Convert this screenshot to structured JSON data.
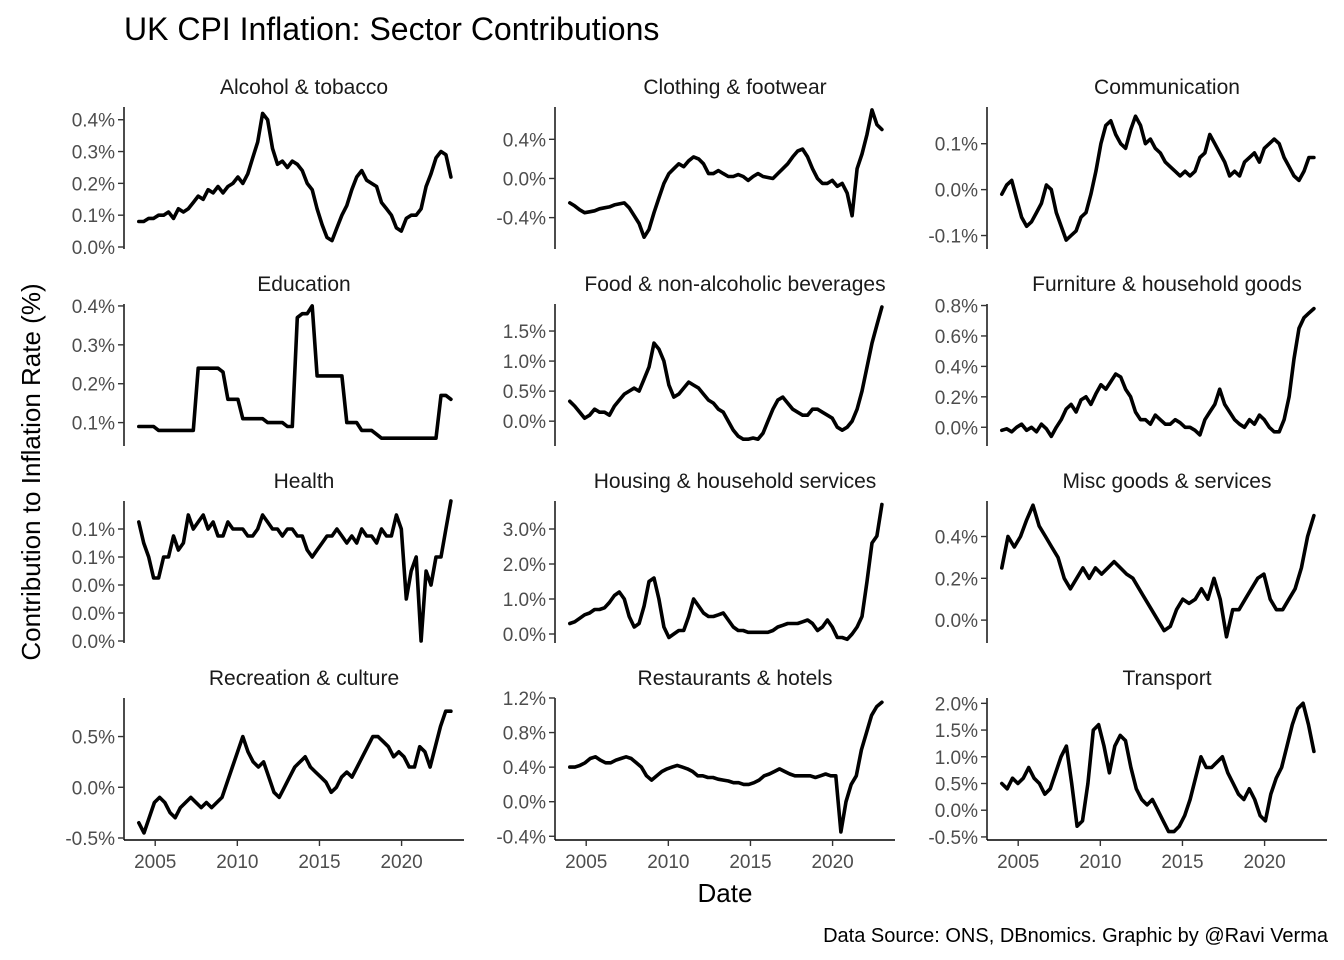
{
  "chart_data": {
    "type": "line",
    "title": "UK CPI Inflation: Sector Contributions",
    "xlabel": "Date",
    "ylabel": "Contribution to Inflation Rate (%)",
    "caption": "Data Source: ONS, DBnomics. Graphic by @Ravi Verma",
    "xlim": [
      2003.1,
      2023.8
    ],
    "x_ticks": [
      2005,
      2010,
      2015,
      2020
    ],
    "x_tick_labels": [
      "2005",
      "2010",
      "2015",
      "2020"
    ],
    "x_start": 2004.0,
    "x_step": 0.25,
    "grid": false,
    "panels": [
      {
        "name": "Alcohol & tobacco",
        "ylim": [
          0.0,
          0.44
        ],
        "y_ticks": [
          0.0,
          0.1,
          0.2,
          0.3,
          0.4
        ],
        "y_tick_labels": [
          "0.0%",
          "0.1%",
          "0.2%",
          "0.3%",
          "0.4%"
        ],
        "values": [
          0.08,
          0.08,
          0.09,
          0.09,
          0.1,
          0.1,
          0.11,
          0.09,
          0.12,
          0.11,
          0.12,
          0.14,
          0.16,
          0.15,
          0.18,
          0.17,
          0.19,
          0.17,
          0.19,
          0.2,
          0.22,
          0.2,
          0.23,
          0.28,
          0.33,
          0.42,
          0.4,
          0.31,
          0.26,
          0.27,
          0.25,
          0.27,
          0.26,
          0.24,
          0.2,
          0.18,
          0.12,
          0.07,
          0.03,
          0.02,
          0.06,
          0.1,
          0.13,
          0.18,
          0.22,
          0.24,
          0.21,
          0.2,
          0.19,
          0.14,
          0.12,
          0.1,
          0.06,
          0.05,
          0.09,
          0.1,
          0.1,
          0.12,
          0.19,
          0.23,
          0.28,
          0.3,
          0.29,
          0.22
        ]
      },
      {
        "name": "Clothing & footwear",
        "ylim": [
          -0.7,
          0.73
        ],
        "y_ticks": [
          -0.4,
          0.0,
          0.4
        ],
        "y_tick_labels": [
          "-0.4%",
          "0.0%",
          "0.4%"
        ],
        "values": [
          -0.25,
          -0.28,
          -0.32,
          -0.35,
          -0.34,
          -0.33,
          -0.31,
          -0.3,
          -0.29,
          -0.27,
          -0.26,
          -0.25,
          -0.3,
          -0.38,
          -0.46,
          -0.6,
          -0.52,
          -0.35,
          -0.2,
          -0.05,
          0.05,
          0.1,
          0.15,
          0.12,
          0.18,
          0.22,
          0.2,
          0.15,
          0.05,
          0.05,
          0.08,
          0.05,
          0.02,
          0.02,
          0.04,
          0.02,
          -0.02,
          0.02,
          0.05,
          0.02,
          0.01,
          0.0,
          0.05,
          0.1,
          0.15,
          0.22,
          0.28,
          0.3,
          0.22,
          0.1,
          0.0,
          -0.05,
          -0.05,
          -0.02,
          -0.08,
          -0.05,
          -0.15,
          -0.38,
          0.1,
          0.25,
          0.45,
          0.7,
          0.55,
          0.5
        ]
      },
      {
        "name": "Communication",
        "ylim": [
          -0.125,
          0.18
        ],
        "y_ticks": [
          -0.1,
          0.0,
          0.1
        ],
        "y_tick_labels": [
          "-0.1%",
          "0.0%",
          "0.1%"
        ],
        "values": [
          -0.01,
          0.01,
          0.02,
          -0.02,
          -0.06,
          -0.08,
          -0.07,
          -0.05,
          -0.03,
          0.01,
          0.0,
          -0.05,
          -0.08,
          -0.11,
          -0.1,
          -0.09,
          -0.06,
          -0.05,
          -0.01,
          0.04,
          0.1,
          0.14,
          0.15,
          0.12,
          0.1,
          0.09,
          0.13,
          0.16,
          0.14,
          0.1,
          0.11,
          0.09,
          0.08,
          0.06,
          0.05,
          0.04,
          0.03,
          0.04,
          0.03,
          0.04,
          0.07,
          0.08,
          0.12,
          0.1,
          0.08,
          0.06,
          0.03,
          0.04,
          0.03,
          0.06,
          0.07,
          0.08,
          0.06,
          0.09,
          0.1,
          0.11,
          0.1,
          0.07,
          0.05,
          0.03,
          0.02,
          0.04,
          0.07,
          0.07
        ]
      },
      {
        "name": "Education",
        "ylim": [
          0.045,
          0.405
        ],
        "y_ticks": [
          0.1,
          0.2,
          0.3,
          0.4
        ],
        "y_tick_labels": [
          "0.1%",
          "0.2%",
          "0.3%",
          "0.4%"
        ],
        "values": [
          0.09,
          0.09,
          0.09,
          0.09,
          0.08,
          0.08,
          0.08,
          0.08,
          0.08,
          0.08,
          0.08,
          0.08,
          0.24,
          0.24,
          0.24,
          0.24,
          0.24,
          0.23,
          0.16,
          0.16,
          0.16,
          0.11,
          0.11,
          0.11,
          0.11,
          0.11,
          0.1,
          0.1,
          0.1,
          0.1,
          0.09,
          0.09,
          0.37,
          0.38,
          0.38,
          0.4,
          0.22,
          0.22,
          0.22,
          0.22,
          0.22,
          0.22,
          0.1,
          0.1,
          0.1,
          0.08,
          0.08,
          0.08,
          0.07,
          0.06,
          0.06,
          0.06,
          0.06,
          0.06,
          0.06,
          0.06,
          0.06,
          0.06,
          0.06,
          0.06,
          0.06,
          0.17,
          0.17,
          0.16
        ]
      },
      {
        "name": "Food & non-alcoholic beverages",
        "ylim": [
          -0.38,
          1.95
        ],
        "y_ticks": [
          0.0,
          0.5,
          1.0,
          1.5
        ],
        "y_tick_labels": [
          "0.0%",
          "0.5%",
          "1.0%",
          "1.5%"
        ],
        "values": [
          0.33,
          0.25,
          0.15,
          0.05,
          0.1,
          0.2,
          0.15,
          0.15,
          0.1,
          0.25,
          0.35,
          0.45,
          0.5,
          0.55,
          0.5,
          0.7,
          0.9,
          1.3,
          1.2,
          1.0,
          0.6,
          0.4,
          0.45,
          0.55,
          0.65,
          0.6,
          0.55,
          0.45,
          0.35,
          0.3,
          0.2,
          0.15,
          0.0,
          -0.15,
          -0.25,
          -0.3,
          -0.3,
          -0.28,
          -0.3,
          -0.2,
          0.0,
          0.2,
          0.35,
          0.4,
          0.3,
          0.2,
          0.15,
          0.1,
          0.1,
          0.2,
          0.2,
          0.15,
          0.1,
          0.05,
          -0.1,
          -0.15,
          -0.1,
          0.0,
          0.2,
          0.5,
          0.9,
          1.3,
          1.6,
          1.9
        ]
      },
      {
        "name": "Furniture & household goods",
        "ylim": [
          -0.11,
          0.81
        ],
        "y_ticks": [
          0.0,
          0.2,
          0.4,
          0.6,
          0.8
        ],
        "y_tick_labels": [
          "0.0%",
          "0.2%",
          "0.4%",
          "0.6%",
          "0.8%"
        ],
        "values": [
          -0.02,
          -0.01,
          -0.03,
          0.0,
          0.02,
          -0.02,
          0.0,
          -0.03,
          0.02,
          -0.01,
          -0.06,
          0.0,
          0.05,
          0.12,
          0.15,
          0.1,
          0.18,
          0.2,
          0.15,
          0.22,
          0.28,
          0.25,
          0.3,
          0.35,
          0.33,
          0.25,
          0.2,
          0.1,
          0.05,
          0.05,
          0.02,
          0.08,
          0.05,
          0.02,
          0.02,
          0.05,
          0.03,
          0.0,
          0.0,
          -0.02,
          -0.05,
          0.05,
          0.1,
          0.15,
          0.25,
          0.15,
          0.1,
          0.05,
          0.02,
          0.0,
          0.05,
          0.02,
          0.08,
          0.05,
          0.0,
          -0.03,
          -0.03,
          0.05,
          0.2,
          0.45,
          0.65,
          0.72,
          0.75,
          0.78
        ]
      },
      {
        "name": "Health",
        "ylim": [
          0.0,
          0.1
        ],
        "y_ticks": [
          0.0,
          0.02,
          0.04,
          0.06,
          0.08
        ],
        "y_tick_labels": [
          "0.0%",
          "0.0%",
          "0.0%",
          "0.1%",
          "0.1%"
        ],
        "values": [
          0.085,
          0.07,
          0.06,
          0.045,
          0.045,
          0.06,
          0.06,
          0.075,
          0.065,
          0.07,
          0.09,
          0.08,
          0.085,
          0.09,
          0.08,
          0.085,
          0.075,
          0.075,
          0.085,
          0.08,
          0.08,
          0.08,
          0.075,
          0.075,
          0.08,
          0.09,
          0.085,
          0.08,
          0.08,
          0.075,
          0.08,
          0.08,
          0.075,
          0.075,
          0.065,
          0.06,
          0.065,
          0.07,
          0.075,
          0.075,
          0.08,
          0.075,
          0.07,
          0.075,
          0.07,
          0.08,
          0.075,
          0.075,
          0.07,
          0.08,
          0.075,
          0.075,
          0.09,
          0.08,
          0.03,
          0.05,
          0.06,
          0.0,
          0.05,
          0.04,
          0.06,
          0.06,
          0.08,
          0.1
        ]
      },
      {
        "name": "Housing & household services",
        "ylim": [
          -0.2,
          3.8
        ],
        "y_ticks": [
          0.0,
          1.0,
          2.0,
          3.0
        ],
        "y_tick_labels": [
          "0.0%",
          "1.0%",
          "2.0%",
          "3.0%"
        ],
        "values": [
          0.3,
          0.35,
          0.45,
          0.55,
          0.6,
          0.7,
          0.7,
          0.75,
          0.9,
          1.1,
          1.2,
          1.0,
          0.5,
          0.2,
          0.3,
          0.8,
          1.5,
          1.6,
          1.0,
          0.2,
          -0.1,
          0.0,
          0.1,
          0.1,
          0.5,
          1.0,
          0.8,
          0.6,
          0.5,
          0.5,
          0.55,
          0.6,
          0.4,
          0.2,
          0.1,
          0.1,
          0.05,
          0.05,
          0.05,
          0.05,
          0.05,
          0.1,
          0.2,
          0.25,
          0.3,
          0.3,
          0.3,
          0.35,
          0.4,
          0.3,
          0.1,
          0.2,
          0.4,
          0.2,
          -0.1,
          -0.1,
          -0.15,
          0.0,
          0.2,
          0.5,
          1.5,
          2.6,
          2.8,
          3.7
        ]
      },
      {
        "name": "Misc goods & services",
        "ylim": [
          -0.1,
          0.57
        ],
        "y_ticks": [
          0.0,
          0.2,
          0.4
        ],
        "y_tick_labels": [
          "0.0%",
          "0.2%",
          "0.4%"
        ],
        "values": [
          0.25,
          0.4,
          0.35,
          0.4,
          0.48,
          0.55,
          0.45,
          0.4,
          0.35,
          0.3,
          0.2,
          0.15,
          0.2,
          0.25,
          0.2,
          0.25,
          0.22,
          0.25,
          0.28,
          0.25,
          0.22,
          0.2,
          0.15,
          0.1,
          0.05,
          0.0,
          -0.05,
          -0.03,
          0.05,
          0.1,
          0.08,
          0.1,
          0.15,
          0.1,
          0.2,
          0.1,
          -0.08,
          0.05,
          0.05,
          0.1,
          0.15,
          0.2,
          0.22,
          0.1,
          0.05,
          0.05,
          0.1,
          0.15,
          0.25,
          0.4,
          0.5
        ]
      },
      {
        "name": "Recreation & culture",
        "ylim": [
          -0.5,
          0.88
        ],
        "y_ticks": [
          -0.5,
          0.0,
          0.5
        ],
        "y_tick_labels": [
          "-0.5%",
          "0.0%",
          "0.5%"
        ],
        "values": [
          -0.35,
          -0.45,
          -0.3,
          -0.15,
          -0.1,
          -0.15,
          -0.25,
          -0.3,
          -0.2,
          -0.15,
          -0.1,
          -0.15,
          -0.2,
          -0.15,
          -0.2,
          -0.15,
          -0.1,
          0.05,
          0.2,
          0.35,
          0.5,
          0.35,
          0.25,
          0.2,
          0.25,
          0.1,
          -0.05,
          -0.1,
          0.0,
          0.1,
          0.2,
          0.25,
          0.3,
          0.2,
          0.15,
          0.1,
          0.05,
          -0.05,
          0.0,
          0.1,
          0.15,
          0.1,
          0.2,
          0.3,
          0.4,
          0.5,
          0.5,
          0.45,
          0.4,
          0.3,
          0.35,
          0.3,
          0.2,
          0.2,
          0.4,
          0.35,
          0.2,
          0.4,
          0.6,
          0.75,
          0.75
        ]
      },
      {
        "name": "Restaurants & hotels",
        "ylim": [
          -0.42,
          1.2
        ],
        "y_ticks": [
          -0.4,
          0.0,
          0.4,
          0.8,
          1.2
        ],
        "y_tick_labels": [
          "-0.4%",
          "0.0%",
          "0.4%",
          "0.8%",
          "1.2%"
        ],
        "values": [
          0.4,
          0.4,
          0.42,
          0.45,
          0.5,
          0.52,
          0.48,
          0.45,
          0.45,
          0.48,
          0.5,
          0.52,
          0.5,
          0.45,
          0.4,
          0.3,
          0.25,
          0.3,
          0.35,
          0.38,
          0.4,
          0.42,
          0.4,
          0.38,
          0.35,
          0.3,
          0.3,
          0.28,
          0.28,
          0.26,
          0.25,
          0.24,
          0.22,
          0.22,
          0.2,
          0.2,
          0.22,
          0.25,
          0.3,
          0.32,
          0.35,
          0.38,
          0.35,
          0.32,
          0.3,
          0.3,
          0.3,
          0.3,
          0.28,
          0.3,
          0.32,
          0.3,
          0.3,
          -0.35,
          0.0,
          0.2,
          0.3,
          0.6,
          0.8,
          1.0,
          1.1,
          1.15
        ]
      },
      {
        "name": "Transport",
        "ylim": [
          -0.52,
          2.1
        ],
        "y_ticks": [
          -0.5,
          0.0,
          0.5,
          1.0,
          1.5,
          2.0
        ],
        "y_tick_labels": [
          "-0.5%",
          "0.0%",
          "0.5%",
          "1.0%",
          "1.5%",
          "2.0%"
        ],
        "values": [
          0.5,
          0.4,
          0.6,
          0.5,
          0.6,
          0.8,
          0.6,
          0.5,
          0.3,
          0.4,
          0.7,
          1.0,
          1.2,
          0.5,
          -0.3,
          -0.2,
          0.5,
          1.5,
          1.6,
          1.2,
          0.7,
          1.2,
          1.4,
          1.3,
          0.8,
          0.4,
          0.2,
          0.1,
          0.2,
          0.0,
          -0.2,
          -0.4,
          -0.4,
          -0.3,
          -0.1,
          0.2,
          0.6,
          1.0,
          0.8,
          0.8,
          0.9,
          1.0,
          0.7,
          0.5,
          0.3,
          0.2,
          0.4,
          0.2,
          -0.1,
          -0.2,
          0.3,
          0.6,
          0.8,
          1.2,
          1.6,
          1.9,
          2.0,
          1.6,
          1.1
        ]
      }
    ]
  }
}
